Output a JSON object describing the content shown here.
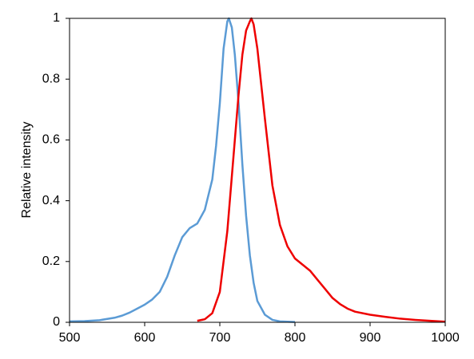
{
  "chart_data": {
    "type": "line",
    "ylabel": "Relative intensity",
    "xlim": [
      500,
      1000
    ],
    "xticks": [
      500,
      600,
      700,
      800,
      900,
      1000
    ],
    "ylim": [
      0,
      1
    ],
    "yticks": [
      0,
      0.2,
      0.4,
      0.6,
      0.8,
      1
    ],
    "series": [
      {
        "color": "#5b9bd5",
        "x": [
          500,
          520,
          540,
          560,
          570,
          580,
          590,
          600,
          610,
          620,
          630,
          640,
          650,
          660,
          670,
          680,
          690,
          695,
          700,
          705,
          710,
          712,
          716,
          720,
          725,
          730,
          735,
          740,
          745,
          750,
          760,
          770,
          780,
          800
        ],
        "values": [
          0.003,
          0.004,
          0.007,
          0.015,
          0.022,
          0.032,
          0.045,
          0.058,
          0.075,
          0.1,
          0.15,
          0.22,
          0.28,
          0.31,
          0.325,
          0.37,
          0.47,
          0.58,
          0.72,
          0.9,
          0.99,
          1.0,
          0.97,
          0.88,
          0.72,
          0.52,
          0.35,
          0.22,
          0.13,
          0.07,
          0.025,
          0.008,
          0.003,
          0.001
        ]
      },
      {
        "color": "#ee0000",
        "x": [
          670,
          680,
          690,
          700,
          710,
          720,
          725,
          730,
          735,
          740,
          742,
          745,
          750,
          760,
          770,
          780,
          790,
          800,
          810,
          820,
          830,
          840,
          850,
          860,
          870,
          880,
          900,
          920,
          940,
          960,
          980,
          1000
        ],
        "values": [
          0.005,
          0.01,
          0.03,
          0.1,
          0.3,
          0.6,
          0.75,
          0.88,
          0.96,
          0.99,
          1.0,
          0.98,
          0.9,
          0.67,
          0.45,
          0.32,
          0.25,
          0.21,
          0.19,
          0.17,
          0.14,
          0.11,
          0.08,
          0.06,
          0.045,
          0.035,
          0.025,
          0.018,
          0.012,
          0.008,
          0.005,
          0.002
        ]
      }
    ]
  }
}
